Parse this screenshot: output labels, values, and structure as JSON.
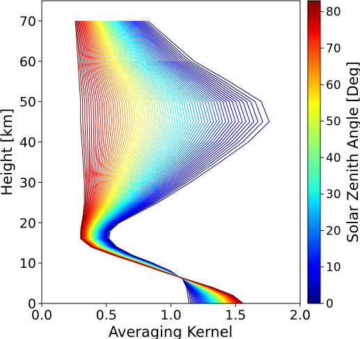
{
  "chart_data": {
    "type": "line",
    "title": "",
    "xlabel": "Averaging Kernel",
    "ylabel": "Height [km]",
    "xlim": [
      0.0,
      2.0
    ],
    "ylim": [
      0,
      75
    ],
    "x_ticks": [
      0.0,
      0.5,
      1.0,
      1.5,
      2.0
    ],
    "x_tick_labels": [
      "0.0",
      "0.5",
      "1.0",
      "1.5",
      "2.0"
    ],
    "y_ticks": [
      0,
      10,
      20,
      30,
      40,
      50,
      60,
      70
    ],
    "y_tick_labels": [
      "0",
      "10",
      "20",
      "30",
      "40",
      "50",
      "60",
      "70"
    ],
    "grid": false,
    "colorbar": {
      "label": "Solar Zenith Angle [Deg]",
      "range": [
        0,
        83
      ],
      "ticks": [
        0,
        10,
        20,
        30,
        40,
        50,
        60,
        70,
        80
      ],
      "tick_labels": [
        "0",
        "10",
        "20",
        "30",
        "40",
        "50",
        "60",
        "70",
        "80"
      ],
      "colormap": "jet"
    },
    "series_description": "One averaging-kernel profile per solar zenith angle, colored by the colorbar",
    "sza_range": [
      0,
      83
    ],
    "profile_heights": [
      0,
      2,
      4,
      6,
      8,
      10,
      12,
      14,
      16,
      18,
      20,
      22,
      25,
      30,
      35,
      40,
      45,
      50,
      55,
      60,
      65,
      70
    ],
    "profile_at_sza_0": [
      1.14,
      1.13,
      1.12,
      1.09,
      1.0,
      0.86,
      0.7,
      0.58,
      0.52,
      0.53,
      0.6,
      0.72,
      0.9,
      1.15,
      1.38,
      1.6,
      1.76,
      1.7,
      1.45,
      1.18,
      1.0,
      0.82
    ],
    "profile_at_sza_83": [
      1.56,
      1.48,
      1.32,
      1.12,
      0.92,
      0.74,
      0.55,
      0.38,
      0.3,
      0.3,
      0.31,
      0.32,
      0.33,
      0.33,
      0.32,
      0.31,
      0.3,
      0.3,
      0.29,
      0.28,
      0.27,
      0.26
    ]
  }
}
